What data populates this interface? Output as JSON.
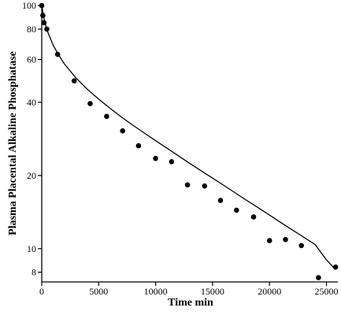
{
  "chart_data": {
    "type": "scatter",
    "title": "",
    "xlabel": "Time  min",
    "ylabel": "Plasma  Placental Alkaline Phosphatase",
    "x_scale": "linear",
    "y_scale": "log",
    "xlim": [
      0,
      26000
    ],
    "ylim": [
      7.3,
      100
    ],
    "grid": false,
    "legend": "none",
    "x_ticks": [
      {
        "value": 0,
        "label": "0"
      },
      {
        "value": 5000,
        "label": "5000"
      },
      {
        "value": 10000,
        "label": "10000"
      },
      {
        "value": 15000,
        "label": "15000"
      },
      {
        "value": 20000,
        "label": "20000"
      },
      {
        "value": 25000,
        "label": "25000"
      }
    ],
    "y_ticks": [
      {
        "value": 8,
        "label": "8"
      },
      {
        "value": 10,
        "label": "10"
      },
      {
        "value": 20,
        "label": "20"
      },
      {
        "value": 40,
        "label": "40"
      },
      {
        "value": 60,
        "label": "60"
      },
      {
        "value": 80,
        "label": "80"
      },
      {
        "value": 100,
        "label": "100"
      }
    ],
    "series": [
      {
        "type": "scatter",
        "x": [
          0,
          100,
          200,
          450,
          1400,
          2850,
          4250,
          5700,
          7100,
          8500,
          10000,
          11400,
          12800,
          14300,
          15700,
          17100,
          18600,
          20000,
          21400,
          22800,
          24300,
          25800
        ],
        "y": [
          100,
          91,
          85,
          80,
          63,
          49,
          39.5,
          35,
          30.5,
          26.5,
          23.5,
          22.8,
          18.3,
          18.1,
          15.8,
          14.4,
          13.5,
          10.8,
          10.9,
          10.3,
          7.6,
          8.4
        ]
      },
      {
        "type": "line",
        "x": [
          0,
          250,
          500,
          1000,
          1500,
          2000,
          3000,
          4000,
          5000,
          6000,
          7000,
          8000,
          9000,
          10000,
          11000,
          12000,
          13000,
          14000,
          15000,
          16000,
          17000,
          18000,
          19000,
          20000,
          21000,
          22000,
          23000,
          24000,
          25000,
          25700
        ],
        "y": [
          100,
          86,
          78.4,
          68.6,
          62.4,
          57.4,
          50.4,
          45.3,
          41.2,
          37.8,
          34.8,
          32.2,
          29.9,
          27.8,
          25.9,
          24.1,
          22.4,
          20.9,
          19.5,
          18.2,
          16.95,
          15.8,
          14.75,
          13.75,
          12.8,
          11.95,
          11.15,
          10.4,
          9.0,
          8.3
        ]
      }
    ]
  }
}
